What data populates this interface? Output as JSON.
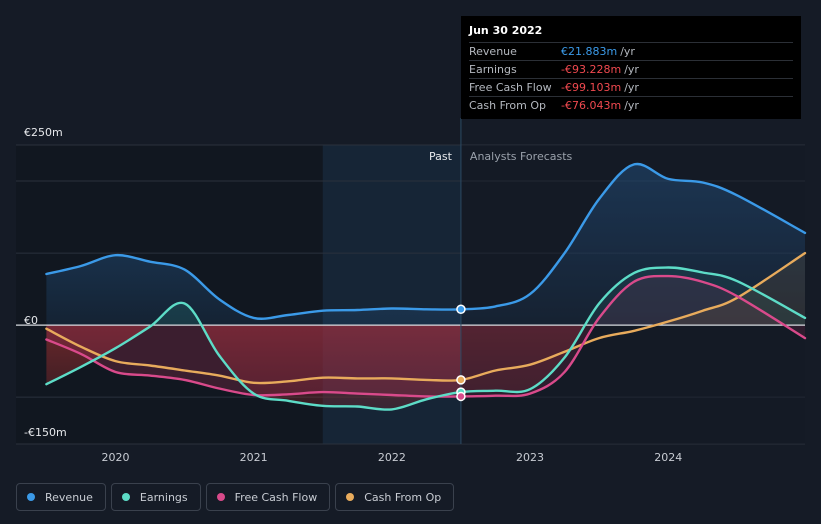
{
  "tooltip": {
    "date": "Jun 30 2022",
    "rows": [
      {
        "label": "Revenue",
        "value": "€21.883m",
        "unit": "/yr",
        "color": "#3b9ae8"
      },
      {
        "label": "Earnings",
        "value": "-€93.228m",
        "unit": "/yr",
        "color": "#f0494f"
      },
      {
        "label": "Free Cash Flow",
        "value": "-€99.103m",
        "unit": "/yr",
        "color": "#f0494f"
      },
      {
        "label": "Cash From Op",
        "value": "-€76.043m",
        "unit": "/yr",
        "color": "#f0494f"
      }
    ]
  },
  "chart_data": {
    "type": "line",
    "past_label": "Past",
    "forecast_label": "Analysts Forecasts",
    "divider_x": 2022.5,
    "xlim": [
      2019.28,
      2024.99
    ],
    "ylim": [
      -165,
      250
    ],
    "y_ticks": [
      {
        "value": 250,
        "label": "€250m"
      },
      {
        "value": 0,
        "label": "€0"
      },
      {
        "value": -150,
        "label": "-€150m"
      }
    ],
    "x_ticks": [
      {
        "value": 2020,
        "label": "2020"
      },
      {
        "value": 2021,
        "label": "2021"
      },
      {
        "value": 2022,
        "label": "2022"
      },
      {
        "value": 2023,
        "label": "2023"
      },
      {
        "value": 2024,
        "label": "2024"
      }
    ],
    "gridlines": [
      200,
      100,
      -100
    ],
    "series": [
      {
        "name": "Revenue",
        "color": "#3b9ae8",
        "points": [
          [
            2019.5,
            71
          ],
          [
            2019.75,
            82
          ],
          [
            2020.0,
            97
          ],
          [
            2020.25,
            88
          ],
          [
            2020.5,
            77
          ],
          [
            2020.75,
            36
          ],
          [
            2021.0,
            10
          ],
          [
            2021.25,
            14
          ],
          [
            2021.5,
            20
          ],
          [
            2021.75,
            21
          ],
          [
            2022.0,
            23
          ],
          [
            2022.25,
            22
          ],
          [
            2022.5,
            22
          ],
          [
            2022.75,
            26
          ],
          [
            2023.0,
            43
          ],
          [
            2023.25,
            100
          ],
          [
            2023.5,
            175
          ],
          [
            2023.75,
            223
          ],
          [
            2024.0,
            203
          ],
          [
            2024.25,
            198
          ],
          [
            2024.5,
            180
          ],
          [
            2024.99,
            128
          ]
        ]
      },
      {
        "name": "Earnings",
        "color": "#5ddcc7",
        "points": [
          [
            2019.5,
            -82
          ],
          [
            2019.75,
            -58
          ],
          [
            2020.0,
            -32
          ],
          [
            2020.25,
            -2
          ],
          [
            2020.5,
            30
          ],
          [
            2020.75,
            -42
          ],
          [
            2021.0,
            -95
          ],
          [
            2021.25,
            -105
          ],
          [
            2021.5,
            -112
          ],
          [
            2021.75,
            -113
          ],
          [
            2022.0,
            -117
          ],
          [
            2022.25,
            -103
          ],
          [
            2022.5,
            -93
          ],
          [
            2022.75,
            -91
          ],
          [
            2023.0,
            -89
          ],
          [
            2023.25,
            -45
          ],
          [
            2023.5,
            30
          ],
          [
            2023.75,
            72
          ],
          [
            2024.0,
            80
          ],
          [
            2024.25,
            73
          ],
          [
            2024.5,
            61
          ],
          [
            2024.99,
            10
          ]
        ]
      },
      {
        "name": "Free Cash Flow",
        "color": "#d94a8b",
        "points": [
          [
            2019.5,
            -20
          ],
          [
            2019.75,
            -40
          ],
          [
            2020.0,
            -65
          ],
          [
            2020.25,
            -70
          ],
          [
            2020.5,
            -76
          ],
          [
            2020.75,
            -88
          ],
          [
            2021.0,
            -97
          ],
          [
            2021.25,
            -96
          ],
          [
            2021.5,
            -93
          ],
          [
            2021.75,
            -95
          ],
          [
            2022.0,
            -97
          ],
          [
            2022.25,
            -99
          ],
          [
            2022.5,
            -99
          ],
          [
            2022.75,
            -98
          ],
          [
            2023.0,
            -95
          ],
          [
            2023.25,
            -65
          ],
          [
            2023.5,
            10
          ],
          [
            2023.75,
            60
          ],
          [
            2024.0,
            68
          ],
          [
            2024.25,
            60
          ],
          [
            2024.5,
            40
          ],
          [
            2024.99,
            -18
          ]
        ]
      },
      {
        "name": "Cash From Op",
        "color": "#e8ab5c",
        "points": [
          [
            2019.5,
            -5
          ],
          [
            2019.75,
            -30
          ],
          [
            2020.0,
            -50
          ],
          [
            2020.25,
            -56
          ],
          [
            2020.5,
            -63
          ],
          [
            2020.75,
            -70
          ],
          [
            2021.0,
            -80
          ],
          [
            2021.25,
            -78
          ],
          [
            2021.5,
            -73
          ],
          [
            2021.75,
            -74
          ],
          [
            2022.0,
            -74
          ],
          [
            2022.25,
            -76
          ],
          [
            2022.5,
            -76
          ],
          [
            2022.75,
            -63
          ],
          [
            2023.0,
            -55
          ],
          [
            2023.25,
            -37
          ],
          [
            2023.5,
            -18
          ],
          [
            2023.75,
            -8
          ],
          [
            2024.0,
            5
          ],
          [
            2024.25,
            20
          ],
          [
            2024.5,
            38
          ],
          [
            2024.99,
            100
          ]
        ]
      }
    ],
    "marker_x": 2022.5,
    "markers": [
      {
        "series": "Revenue",
        "value": 22
      },
      {
        "series": "Earnings",
        "value": -93
      },
      {
        "series": "Free Cash Flow",
        "value": -99
      },
      {
        "series": "Cash From Op",
        "value": -76
      }
    ]
  },
  "legend": [
    {
      "label": "Revenue",
      "color": "#3b9ae8"
    },
    {
      "label": "Earnings",
      "color": "#5ddcc7"
    },
    {
      "label": "Free Cash Flow",
      "color": "#d94a8b"
    },
    {
      "label": "Cash From Op",
      "color": "#e8ab5c"
    }
  ]
}
